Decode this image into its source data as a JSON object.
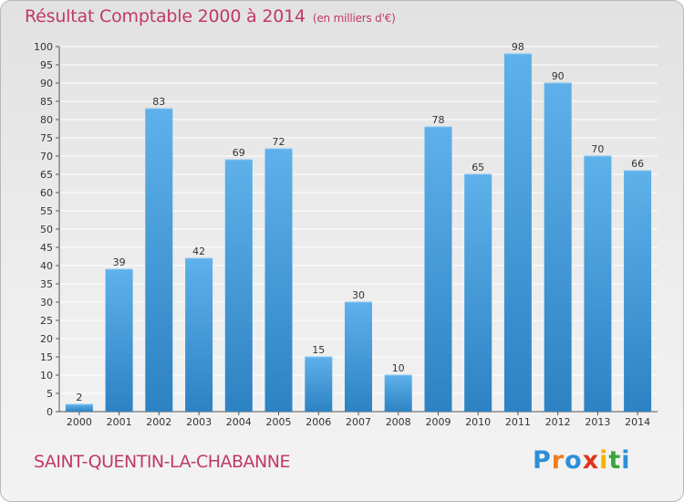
{
  "header": {
    "title": "Résultat Comptable 2000 à 2014",
    "unit": "(en milliers d'€)"
  },
  "footer": {
    "commune": "SAINT-QUENTIN-LA-CHABANNE",
    "brand_letters": [
      "P",
      "r",
      "o",
      "x",
      "i",
      "t",
      "i"
    ],
    "brand_colors": [
      "#2e8ed8",
      "#f07c1e",
      "#2e8ed8",
      "#e0341b",
      "#f4b400",
      "#3aa53a",
      "#2e8ed8"
    ]
  },
  "colors": {
    "title": "#c0396a",
    "bar_light": "#5eb1ea",
    "bar_dark": "#2d82c3",
    "grid": "#ffffff",
    "axis": "#555555"
  },
  "chart_data": {
    "type": "bar",
    "title": "Résultat Comptable 2000 à 2014",
    "xlabel": "",
    "ylabel": "(en milliers d'€)",
    "ylim": [
      0,
      100
    ],
    "ytick_step": 5,
    "grid": true,
    "categories": [
      "2000",
      "2001",
      "2002",
      "2003",
      "2004",
      "2005",
      "2006",
      "2007",
      "2008",
      "2009",
      "2010",
      "2011",
      "2012",
      "2013",
      "2014"
    ],
    "values": [
      2,
      39,
      83,
      42,
      69,
      72,
      15,
      30,
      10,
      78,
      65,
      98,
      90,
      70,
      66
    ]
  }
}
